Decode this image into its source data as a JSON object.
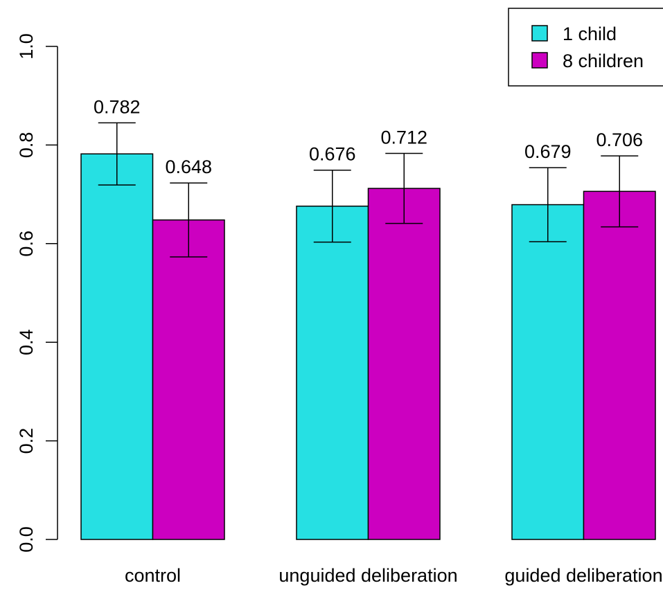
{
  "chart_data": {
    "type": "bar",
    "categories": [
      "control",
      "unguided deliberation",
      "guided deliberation"
    ],
    "series": [
      {
        "name": "1 child",
        "color": "#26e0e3",
        "values": [
          0.782,
          0.676,
          0.679
        ],
        "value_labels": [
          "0.782",
          "0.676",
          "0.679"
        ],
        "ci_low": [
          0.719,
          0.603,
          0.604
        ],
        "ci_high": [
          0.845,
          0.749,
          0.754
        ]
      },
      {
        "name": "8 children",
        "color": "#cc00c0",
        "values": [
          0.648,
          0.712,
          0.706
        ],
        "value_labels": [
          "0.648",
          "0.712",
          "0.706"
        ],
        "ci_low": [
          0.573,
          0.641,
          0.634
        ],
        "ci_high": [
          0.723,
          0.783,
          0.778
        ]
      }
    ],
    "ylim": [
      0,
      1
    ],
    "yticks": [
      0.0,
      0.2,
      0.4,
      0.6,
      0.8,
      1.0
    ],
    "ytick_labels": [
      "0.0",
      "0.2",
      "0.4",
      "0.6",
      "0.8",
      "1.0"
    ],
    "title": "",
    "xlabel": "",
    "ylabel": "",
    "legend_position": "top-right",
    "grid": false
  }
}
